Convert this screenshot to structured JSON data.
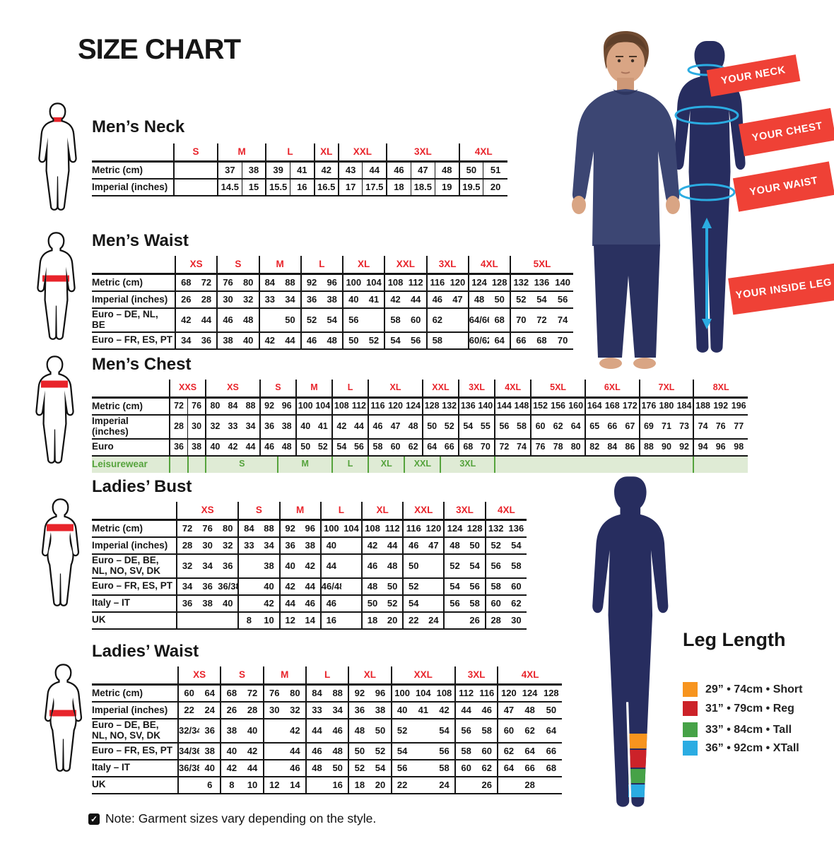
{
  "title": "SIZE CHART",
  "note": "Note: Garment sizes vary depending on the style.",
  "colors": {
    "accent_red": "#E8242B",
    "ribbon_red": "#EF4136",
    "navy": "#272D5F",
    "measure_blue": "#2BACE2",
    "leisure_green": "#55A33C",
    "leisure_bg": "#DFEBD5"
  },
  "ribbons": [
    {
      "label": "YOUR NECK"
    },
    {
      "label": "YOUR CHEST"
    },
    {
      "label": "YOUR WAIST"
    },
    {
      "label": "YOUR INSIDE LEG"
    }
  ],
  "tables": [
    {
      "id": "mens-neck",
      "title": "Men’s Neck",
      "col_lines": true,
      "groups": [
        {
          "label": "S",
          "span": 1
        },
        {
          "label": "M",
          "span": 2
        },
        {
          "label": "L",
          "span": 2
        },
        {
          "label": "XL",
          "span": 1
        },
        {
          "label": "XXL",
          "span": 2
        },
        {
          "label": "3XL",
          "span": 3
        },
        {
          "label": "4XL",
          "span": 2
        }
      ],
      "rows": [
        {
          "label": "Metric (cm)",
          "cells": [
            "",
            "37",
            "38",
            "39",
            "41",
            "42",
            "43",
            "44",
            "46",
            "47",
            "48",
            "50",
            "51"
          ]
        },
        {
          "label": "Imperial (inches)",
          "cells": [
            "",
            "14.5",
            "15",
            "15.5",
            "16",
            "16.5",
            "17",
            "17.5",
            "18",
            "18.5",
            "19",
            "19.5",
            "20"
          ]
        }
      ]
    },
    {
      "id": "mens-waist",
      "title": "Men’s Waist",
      "col_lines": false,
      "groups": [
        {
          "label": "XS",
          "span": 2
        },
        {
          "label": "S",
          "span": 2
        },
        {
          "label": "M",
          "span": 2
        },
        {
          "label": "L",
          "span": 2
        },
        {
          "label": "XL",
          "span": 2
        },
        {
          "label": "XXL",
          "span": 2
        },
        {
          "label": "3XL",
          "span": 2
        },
        {
          "label": "4XL",
          "span": 2
        },
        {
          "label": "5XL",
          "span": 3
        }
      ],
      "rows": [
        {
          "label": "Metric (cm)",
          "cells": [
            "68",
            "72",
            "76",
            "80",
            "84",
            "88",
            "92",
            "96",
            "100",
            "104",
            "108",
            "112",
            "116",
            "120",
            "124",
            "128",
            "132",
            "136",
            "140"
          ]
        },
        {
          "label": "Imperial (inches)",
          "cells": [
            "26",
            "28",
            "30",
            "32",
            "33",
            "34",
            "36",
            "38",
            "40",
            "41",
            "42",
            "44",
            "46",
            "47",
            "48",
            "50",
            "52",
            "54",
            "56"
          ]
        },
        {
          "label": "Euro – DE, NL, BE",
          "cells": [
            "42",
            "44",
            "46",
            "48",
            "",
            "50",
            "52",
            "54",
            "56",
            "",
            "58",
            "60",
            "62",
            "",
            "64/66",
            "68",
            "70",
            "72",
            "74"
          ]
        },
        {
          "label": "Euro – FR, ES, PT",
          "cells": [
            "34",
            "36",
            "38",
            "40",
            "42",
            "44",
            "46",
            "48",
            "50",
            "52",
            "54",
            "56",
            "58",
            "",
            "60/62",
            "64",
            "66",
            "68",
            "70"
          ]
        }
      ]
    },
    {
      "id": "mens-chest",
      "title": "Men’s Chest",
      "col_lines": false,
      "groups": [
        {
          "label": "XXS",
          "span": 2
        },
        {
          "label": "XS",
          "span": 3
        },
        {
          "label": "S",
          "span": 2
        },
        {
          "label": "M",
          "span": 2
        },
        {
          "label": "L",
          "span": 2
        },
        {
          "label": "XL",
          "span": 3
        },
        {
          "label": "XXL",
          "span": 2
        },
        {
          "label": "3XL",
          "span": 2
        },
        {
          "label": "4XL",
          "span": 2
        },
        {
          "label": "5XL",
          "span": 3
        },
        {
          "label": "6XL",
          "span": 3
        },
        {
          "label": "7XL",
          "span": 3
        },
        {
          "label": "8XL",
          "span": 3
        }
      ],
      "rows": [
        {
          "label": "Metric (cm)",
          "cells": [
            "72",
            "76",
            "80",
            "84",
            "88",
            "92",
            "96",
            "100",
            "104",
            "108",
            "112",
            "116",
            "120",
            "124",
            "128",
            "132",
            "136",
            "140",
            "144",
            "148",
            "152",
            "156",
            "160",
            "164",
            "168",
            "172",
            "176",
            "180",
            "184",
            "188",
            "192",
            "196"
          ]
        },
        {
          "label": "Imperial (inches)",
          "cells": [
            "28",
            "30",
            "32",
            "33",
            "34",
            "36",
            "38",
            "40",
            "41",
            "42",
            "44",
            "46",
            "47",
            "48",
            "50",
            "52",
            "54",
            "55",
            "56",
            "58",
            "60",
            "62",
            "64",
            "65",
            "66",
            "67",
            "69",
            "71",
            "73",
            "74",
            "76",
            "77"
          ]
        },
        {
          "label": "Euro",
          "cells": [
            "36",
            "38",
            "40",
            "42",
            "44",
            "46",
            "48",
            "50",
            "52",
            "54",
            "56",
            "58",
            "60",
            "62",
            "64",
            "66",
            "68",
            "70",
            "72",
            "74",
            "76",
            "78",
            "80",
            "82",
            "84",
            "86",
            "88",
            "90",
            "92",
            "94",
            "96",
            "98"
          ]
        }
      ],
      "leisure": {
        "label": "Leisurewear",
        "cells": [
          {
            "label": "",
            "span": 1
          },
          {
            "label": "",
            "span": 1
          },
          {
            "label": "S",
            "span": 4
          },
          {
            "label": "M",
            "span": 3
          },
          {
            "label": "L",
            "span": 2
          },
          {
            "label": "XL",
            "span": 2
          },
          {
            "label": "XXL",
            "span": 2
          },
          {
            "label": "3XL",
            "span": 3
          },
          {
            "label": "",
            "span": 11
          },
          {
            "label": "",
            "span": 3
          }
        ]
      }
    },
    {
      "id": "ladies-bust",
      "title": "Ladies’ Bust",
      "col_lines": false,
      "groups": [
        {
          "label": "XS",
          "span": 3
        },
        {
          "label": "S",
          "span": 2
        },
        {
          "label": "M",
          "span": 2
        },
        {
          "label": "L",
          "span": 2
        },
        {
          "label": "XL",
          "span": 2
        },
        {
          "label": "XXL",
          "span": 2
        },
        {
          "label": "3XL",
          "span": 2
        },
        {
          "label": "4XL",
          "span": 2
        }
      ],
      "rows": [
        {
          "label": "Metric (cm)",
          "cells": [
            "72",
            "76",
            "80",
            "84",
            "88",
            "92",
            "96",
            "100",
            "104",
            "108",
            "112",
            "116",
            "120",
            "124",
            "128",
            "132",
            "136"
          ]
        },
        {
          "label": "Imperial (inches)",
          "cells": [
            "28",
            "30",
            "32",
            "33",
            "34",
            "36",
            "38",
            "40",
            "",
            "42",
            "44",
            "46",
            "47",
            "48",
            "50",
            "52",
            "54"
          ]
        },
        {
          "label": "Euro –  DE, BE, NL, NO, SV, DK",
          "cells": [
            "32",
            "34",
            "36",
            "",
            "38",
            "40",
            "42",
            "44",
            "",
            "46",
            "48",
            "50",
            "",
            "52",
            "54",
            "56",
            "58"
          ]
        },
        {
          "label": "Euro – FR, ES, PT",
          "cells": [
            "34",
            "36",
            "36/38",
            "",
            "40",
            "42",
            "44",
            "46/48",
            "",
            "48",
            "50",
            "52",
            "",
            "54",
            "56",
            "58",
            "60"
          ]
        },
        {
          "label": "Italy – IT",
          "cells": [
            "36",
            "38",
            "40",
            "",
            "42",
            "44",
            "46",
            "46",
            "",
            "50",
            "52",
            "54",
            "",
            "56",
            "58",
            "60",
            "62"
          ]
        },
        {
          "label": "UK",
          "cells": [
            "",
            "",
            "",
            "8",
            "10",
            "12",
            "14",
            "16",
            "",
            "18",
            "20",
            "22",
            "24",
            "",
            "26",
            "28",
            "30"
          ]
        }
      ]
    },
    {
      "id": "ladies-waist",
      "title": "Ladies’ Waist",
      "col_lines": false,
      "groups": [
        {
          "label": "XS",
          "span": 2
        },
        {
          "label": "S",
          "span": 2
        },
        {
          "label": "M",
          "span": 2
        },
        {
          "label": "L",
          "span": 2
        },
        {
          "label": "XL",
          "span": 2
        },
        {
          "label": "XXL",
          "span": 3
        },
        {
          "label": "3XL",
          "span": 2
        },
        {
          "label": "4XL",
          "span": 3
        }
      ],
      "rows": [
        {
          "label": "Metric (cm)",
          "cells": [
            "60",
            "64",
            "68",
            "72",
            "76",
            "80",
            "84",
            "88",
            "92",
            "96",
            "100",
            "104",
            "108",
            "112",
            "116",
            "120",
            "124",
            "128"
          ]
        },
        {
          "label": "Imperial (inches)",
          "cells": [
            "22",
            "24",
            "26",
            "28",
            "30",
            "32",
            "33",
            "34",
            "36",
            "38",
            "40",
            "41",
            "42",
            "44",
            "46",
            "47",
            "48",
            "50"
          ]
        },
        {
          "label": "Euro – DE, BE, NL, NO, SV, DK",
          "cells": [
            "32/34",
            "36",
            "38",
            "40",
            "",
            "42",
            "44",
            "46",
            "48",
            "50",
            "52",
            "",
            "54",
            "56",
            "58",
            "60",
            "62",
            "64"
          ]
        },
        {
          "label": "Euro – FR, ES, PT",
          "cells": [
            "34/36",
            "38",
            "40",
            "42",
            "",
            "44",
            "46",
            "48",
            "50",
            "52",
            "54",
            "",
            "56",
            "58",
            "60",
            "62",
            "64",
            "66"
          ]
        },
        {
          "label": "Italy – IT",
          "cells": [
            "36/38",
            "40",
            "42",
            "44",
            "",
            "46",
            "48",
            "50",
            "52",
            "54",
            "56",
            "",
            "58",
            "60",
            "62",
            "64",
            "66",
            "68"
          ]
        },
        {
          "label": "UK",
          "cells": [
            "",
            "6",
            "8",
            "10",
            "12",
            "14",
            "",
            "16",
            "18",
            "20",
            "22",
            "",
            "24",
            "",
            "26",
            "",
            "28",
            ""
          ]
        }
      ]
    }
  ],
  "leg_length": {
    "title": "Leg Length",
    "items": [
      {
        "color": "#F7941E",
        "label": "29” • 74cm • Short"
      },
      {
        "color": "#CC2229",
        "label": "31” • 79cm • Reg"
      },
      {
        "color": "#46A247",
        "label": "33” • 84cm • Tall"
      },
      {
        "color": "#2BACE2",
        "label": "36” • 92cm • XTall"
      }
    ]
  }
}
